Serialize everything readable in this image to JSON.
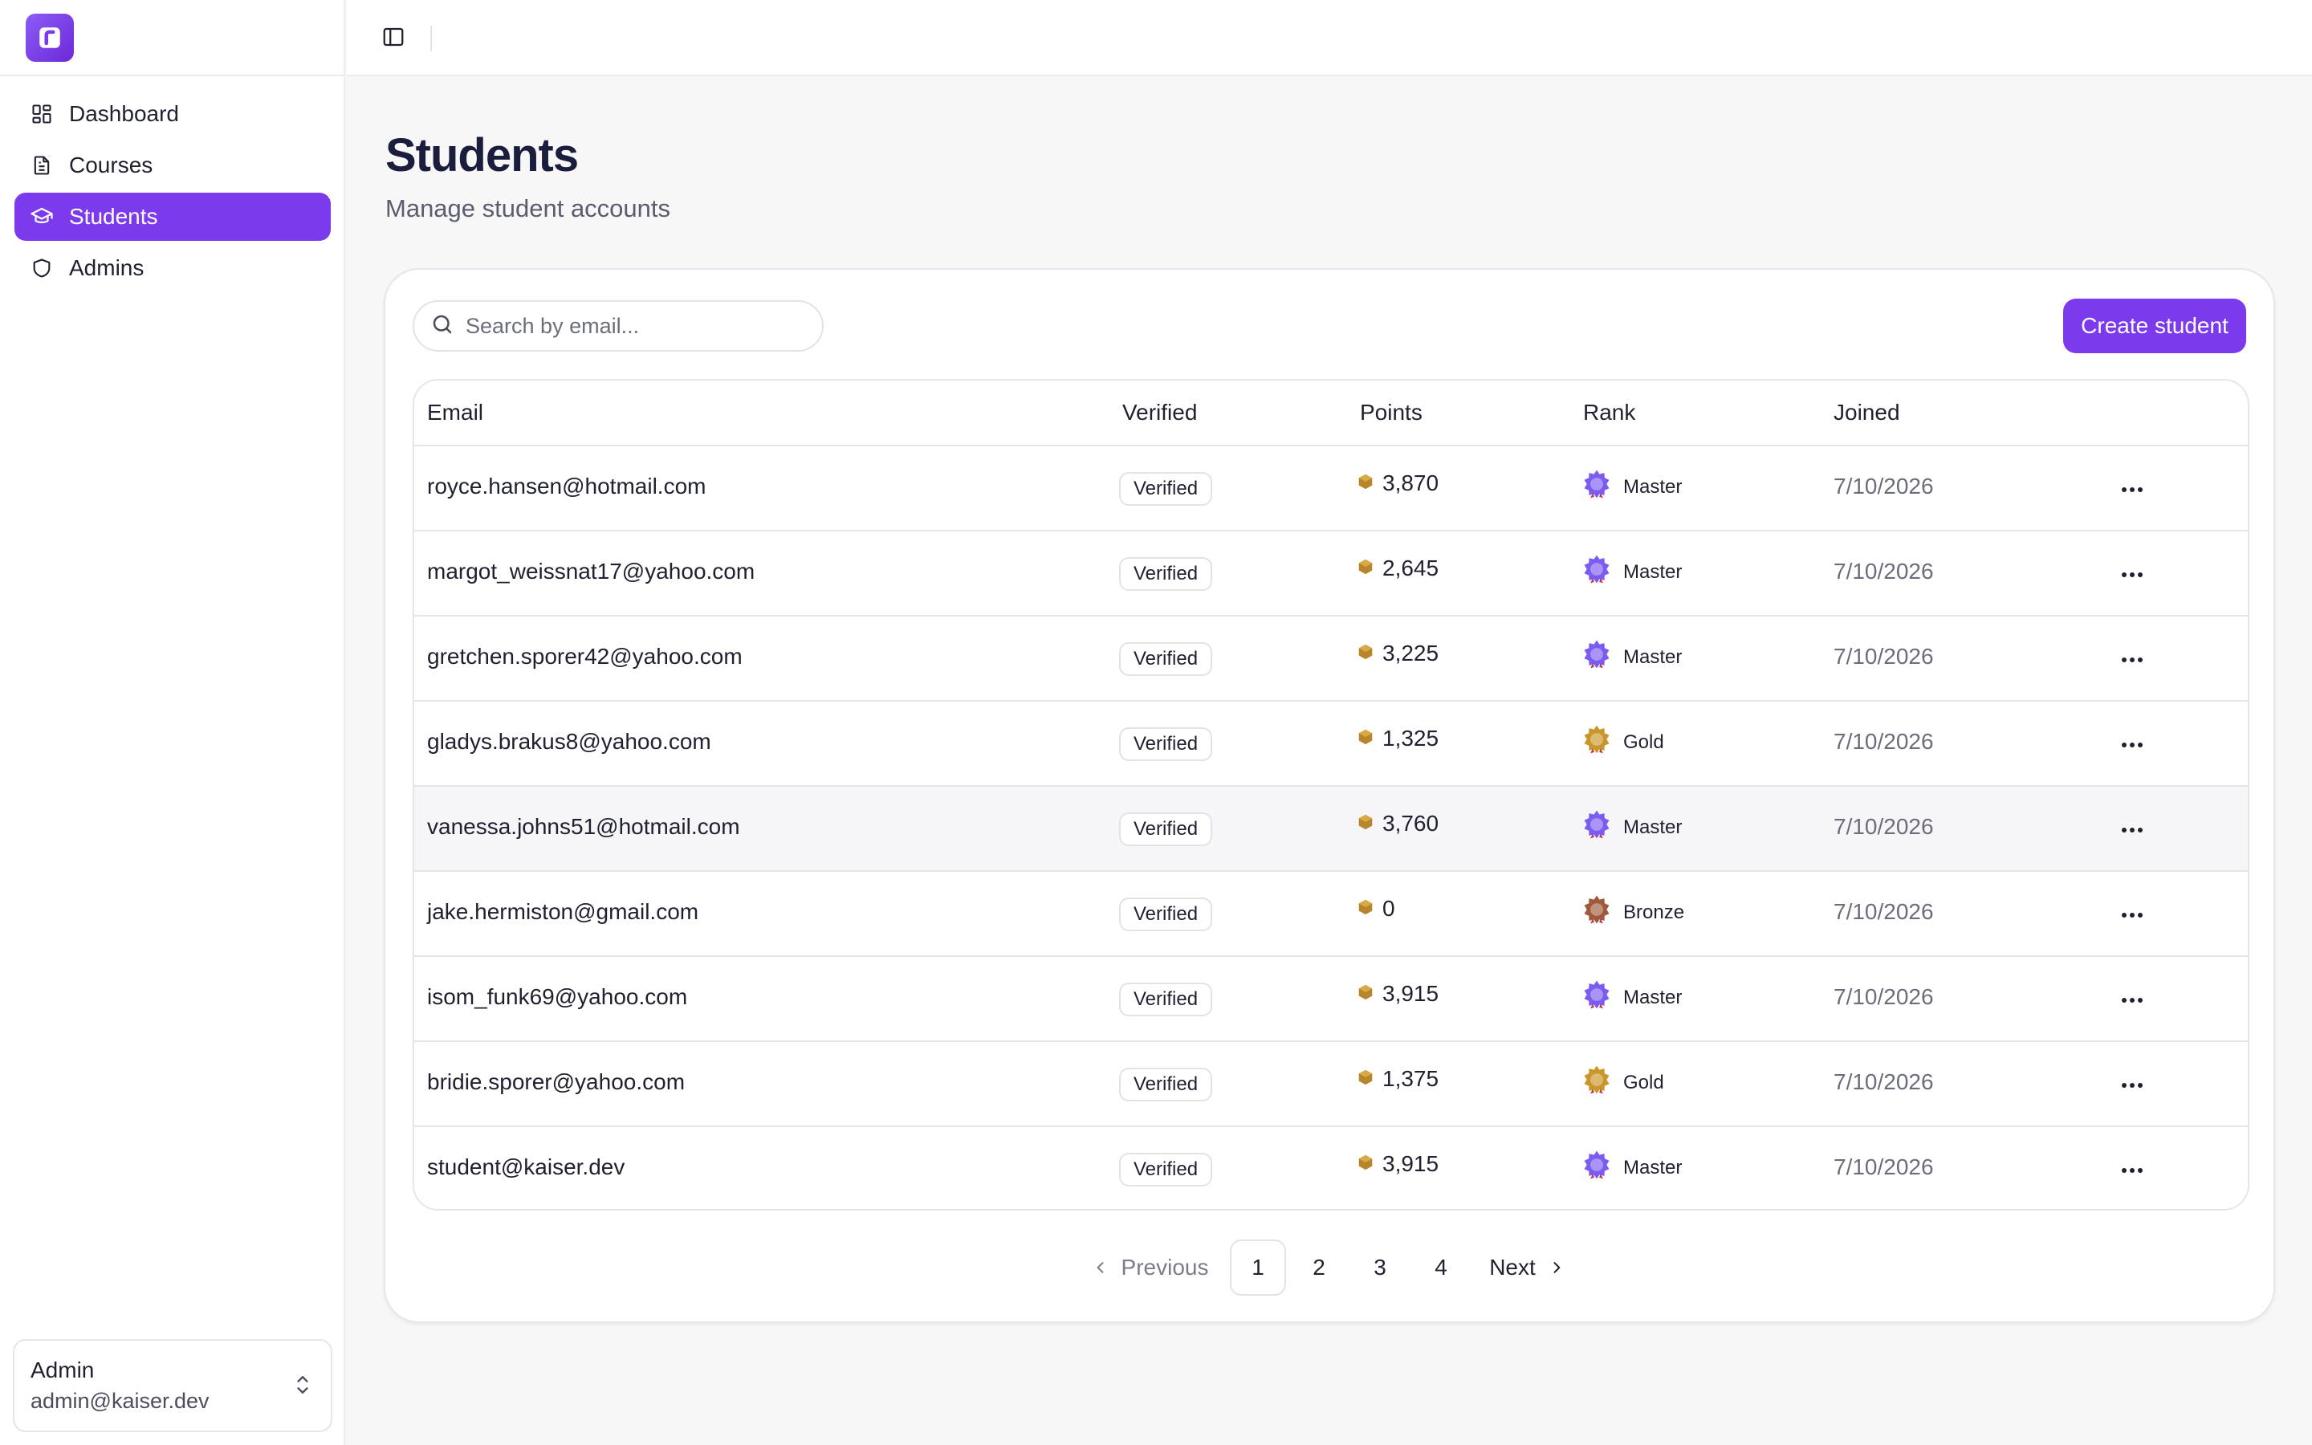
{
  "sidebar": {
    "logo_letter": "r",
    "items": [
      {
        "label": "Dashboard",
        "icon": "dashboard-icon"
      },
      {
        "label": "Courses",
        "icon": "file-icon"
      },
      {
        "label": "Students",
        "icon": "graduation-cap-icon",
        "active": true
      },
      {
        "label": "Admins",
        "icon": "shield-icon"
      }
    ],
    "user": {
      "name": "Admin",
      "email": "admin@kaiser.dev"
    }
  },
  "page": {
    "title": "Students",
    "subtitle": "Manage student accounts"
  },
  "toolbar": {
    "search_placeholder": "Search by email...",
    "create_label": "Create student"
  },
  "table": {
    "headers": {
      "email": "Email",
      "verified": "Verified",
      "points": "Points",
      "rank": "Rank",
      "joined": "Joined"
    },
    "rows": [
      {
        "email": "royce.hansen@hotmail.com",
        "verified": "Verified",
        "points": "3,870",
        "rank": "Master",
        "joined": "7/10/2026"
      },
      {
        "email": "margot_weissnat17@yahoo.com",
        "verified": "Verified",
        "points": "2,645",
        "rank": "Master",
        "joined": "7/10/2026"
      },
      {
        "email": "gretchen.sporer42@yahoo.com",
        "verified": "Verified",
        "points": "3,225",
        "rank": "Master",
        "joined": "7/10/2026"
      },
      {
        "email": "gladys.brakus8@yahoo.com",
        "verified": "Verified",
        "points": "1,325",
        "rank": "Gold",
        "joined": "7/10/2026"
      },
      {
        "email": "vanessa.johns51@hotmail.com",
        "verified": "Verified",
        "points": "3,760",
        "rank": "Master",
        "joined": "7/10/2026"
      },
      {
        "email": "jake.hermiston@gmail.com",
        "verified": "Verified",
        "points": "0",
        "rank": "Bronze",
        "joined": "7/10/2026"
      },
      {
        "email": "isom_funk69@yahoo.com",
        "verified": "Verified",
        "points": "3,915",
        "rank": "Master",
        "joined": "7/10/2026"
      },
      {
        "email": "bridie.sporer@yahoo.com",
        "verified": "Verified",
        "points": "1,375",
        "rank": "Gold",
        "joined": "7/10/2026"
      },
      {
        "email": "student@kaiser.dev",
        "verified": "Verified",
        "points": "3,915",
        "rank": "Master",
        "joined": "7/10/2026"
      }
    ]
  },
  "pagination": {
    "previous": "Previous",
    "pages": [
      "1",
      "2",
      "3",
      "4"
    ],
    "current": "1",
    "next": "Next"
  },
  "colors": {
    "accent": "#7c3aed",
    "master": "#7c5cf0",
    "gold": "#c9962a",
    "bronze": "#a0593a",
    "coin": "#b8862a"
  }
}
